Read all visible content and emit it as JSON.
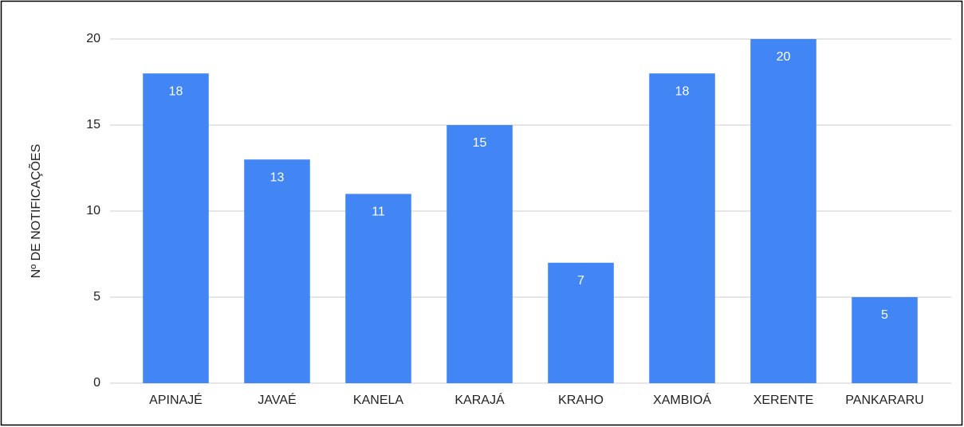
{
  "chart_data": {
    "type": "bar",
    "y_label": "Nº DE NOTIFICAÇÕES",
    "categories": [
      "APINAJÉ",
      "JAVAÉ",
      "KANELA",
      "KARAJÁ",
      "KRAHO",
      "XAMBIOÁ",
      "XERENTE",
      "PANKARARU"
    ],
    "values": [
      18,
      13,
      11,
      15,
      7,
      18,
      20,
      5
    ],
    "color": "#4285f4",
    "ylim": [
      0,
      20
    ],
    "yticks": [
      0,
      5,
      10,
      15,
      20
    ],
    "grid": true,
    "value_labels_shown": true
  }
}
